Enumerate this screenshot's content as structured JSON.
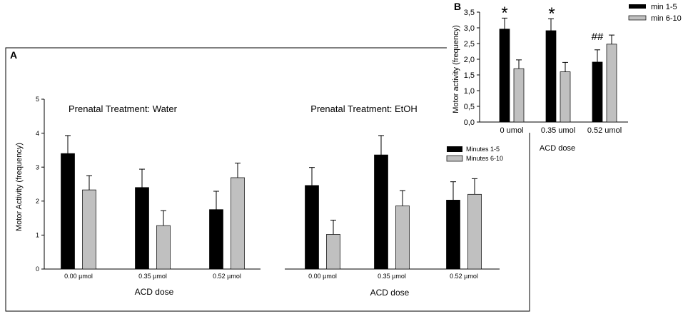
{
  "panel_a": {
    "label": "A",
    "ylabel": "Motor Activity (frequency)",
    "legend": [
      "Minutes 1-5",
      "Minutes 6-10"
    ]
  },
  "panel_b": {
    "label": "B",
    "legend": [
      "min 1-5",
      "min 6-10"
    ]
  },
  "colors": {
    "series1": "#000000",
    "series2": "#c0c0c0",
    "frame": "#000000"
  },
  "chart_data": [
    {
      "id": "A-water",
      "type": "bar",
      "title": "Prenatal Treatment: Water",
      "xlabel": "ACD dose",
      "ylabel": "Motor Activity (frequency)",
      "categories": [
        "0.00 µmol",
        "0.35 µmol",
        "0.52 µmol"
      ],
      "ylim": [
        0,
        5
      ],
      "yticks": [
        "0",
        "1",
        "2",
        "3",
        "4",
        "5"
      ],
      "series": [
        {
          "name": "Minutes 1-5",
          "values": [
            3.4,
            2.4,
            1.75
          ],
          "errors": [
            0.53,
            0.54,
            0.54
          ]
        },
        {
          "name": "Minutes 6-10",
          "values": [
            2.33,
            1.28,
            2.69
          ],
          "errors": [
            0.42,
            0.44,
            0.43
          ]
        }
      ]
    },
    {
      "id": "A-etoh",
      "type": "bar",
      "title": "Prenatal Treatment: EtOH",
      "xlabel": "ACD dose",
      "categories": [
        "0.00 µmol",
        "0.35 µmol",
        "0.52 µmol"
      ],
      "ylim": [
        0,
        5
      ],
      "series": [
        {
          "name": "Minutes 1-5",
          "values": [
            2.46,
            3.36,
            2.03
          ],
          "errors": [
            0.53,
            0.57,
            0.54
          ]
        },
        {
          "name": "Minutes 6-10",
          "values": [
            1.02,
            1.86,
            2.2
          ],
          "errors": [
            0.42,
            0.45,
            0.46
          ]
        }
      ]
    },
    {
      "id": "B",
      "type": "bar",
      "xlabel": "ACD dose",
      "ylabel": "Motor activity (frequency)",
      "categories": [
        "0 umol",
        "0.35 umol",
        "0.52 umol"
      ],
      "ylim": [
        0,
        3.5
      ],
      "yticks": [
        "0,0",
        "0,5",
        "1,0",
        "1,5",
        "2,0",
        "2,5",
        "3,0",
        "3,5"
      ],
      "series": [
        {
          "name": "min 1-5",
          "values": [
            2.96,
            2.91,
            1.91
          ],
          "errors": [
            0.35,
            0.38,
            0.39
          ]
        },
        {
          "name": "min 6-10",
          "values": [
            1.7,
            1.6,
            2.48
          ],
          "errors": [
            0.28,
            0.3,
            0.29
          ]
        }
      ],
      "annotations": [
        {
          "text": "*",
          "category": 0,
          "series": 0
        },
        {
          "text": "*",
          "category": 1,
          "series": 0
        },
        {
          "text": "##",
          "category": 2,
          "series": 0
        }
      ]
    }
  ]
}
